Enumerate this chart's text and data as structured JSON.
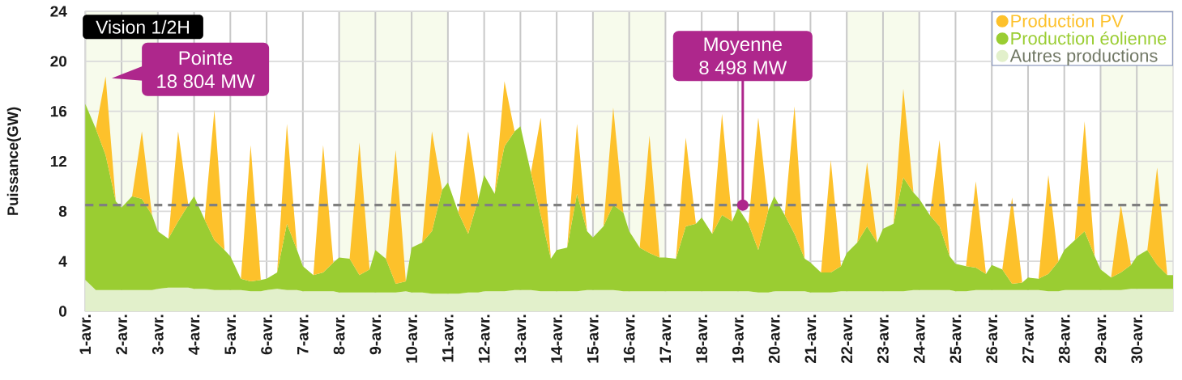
{
  "chart_data": {
    "type": "area",
    "stacked": true,
    "ylabel": "Puissance(GW)",
    "x": [
      1,
      1.29,
      1.56,
      1.84,
      2,
      2.29,
      2.56,
      2.84,
      3,
      3.29,
      3.56,
      3.84,
      4,
      4.29,
      4.56,
      4.84,
      5,
      5.29,
      5.56,
      5.84,
      6,
      6.29,
      6.56,
      6.84,
      7,
      7.29,
      7.56,
      7.84,
      8,
      8.29,
      8.56,
      8.84,
      9,
      9.29,
      9.56,
      9.84,
      10,
      10.29,
      10.56,
      10.84,
      11,
      11.29,
      11.56,
      11.84,
      12,
      12.29,
      12.56,
      12.84,
      13,
      13.29,
      13.56,
      13.84,
      14,
      14.29,
      14.56,
      14.84,
      15,
      15.29,
      15.56,
      15.84,
      16,
      16.29,
      16.56,
      16.84,
      17,
      17.29,
      17.56,
      17.84,
      18,
      18.29,
      18.56,
      18.84,
      19,
      19.29,
      19.56,
      19.84,
      20,
      20.29,
      20.56,
      20.84,
      21,
      21.29,
      21.56,
      21.84,
      22,
      22.29,
      22.56,
      22.84,
      23,
      23.29,
      23.56,
      23.84,
      24,
      24.29,
      24.56,
      24.84,
      25,
      25.29,
      25.56,
      25.84,
      26,
      26.29,
      26.56,
      26.84,
      27,
      27.29,
      27.56,
      27.84,
      28,
      28.29,
      28.56,
      28.84,
      29,
      29.29,
      29.56,
      29.84,
      30,
      30.29,
      30.56,
      30.84,
      31
    ],
    "series": [
      {
        "name": "Autres productions",
        "color": "#E2F0CB",
        "values": [
          2.5,
          1.7,
          1.7,
          1.7,
          1.7,
          1.7,
          1.7,
          1.7,
          1.8,
          1.9,
          1.9,
          1.9,
          1.8,
          1.8,
          1.7,
          1.7,
          1.7,
          1.7,
          1.6,
          1.6,
          1.7,
          1.8,
          1.7,
          1.7,
          1.6,
          1.6,
          1.6,
          1.6,
          1.5,
          1.5,
          1.5,
          1.5,
          1.5,
          1.5,
          1.5,
          1.6,
          1.5,
          1.5,
          1.4,
          1.4,
          1.4,
          1.4,
          1.5,
          1.5,
          1.6,
          1.6,
          1.6,
          1.7,
          1.7,
          1.7,
          1.6,
          1.6,
          1.6,
          1.6,
          1.6,
          1.7,
          1.7,
          1.7,
          1.7,
          1.6,
          1.6,
          1.6,
          1.6,
          1.6,
          1.6,
          1.6,
          1.6,
          1.6,
          1.6,
          1.6,
          1.6,
          1.6,
          1.6,
          1.6,
          1.5,
          1.5,
          1.6,
          1.6,
          1.6,
          1.6,
          1.5,
          1.5,
          1.5,
          1.6,
          1.6,
          1.6,
          1.6,
          1.6,
          1.6,
          1.6,
          1.6,
          1.7,
          1.7,
          1.7,
          1.7,
          1.7,
          1.6,
          1.6,
          1.7,
          1.7,
          1.7,
          1.7,
          1.7,
          1.7,
          1.7,
          1.7,
          1.6,
          1.6,
          1.7,
          1.7,
          1.7,
          1.7,
          1.7,
          1.7,
          1.7,
          1.8,
          1.8,
          1.8,
          1.8,
          1.8,
          1.8
        ]
      },
      {
        "name": "Production éolienne",
        "color": "#9ACD32",
        "values": [
          14.1,
          12.9,
          10.8,
          7.1,
          6.6,
          7.5,
          7.3,
          6.0,
          4.6,
          3.9,
          5.3,
          6.6,
          7.4,
          5.55,
          4.0,
          3.2,
          2.7,
          0.9,
          0.8,
          0.9,
          0.9,
          1.3,
          5.3,
          3.2,
          2.0,
          1.3,
          1.5,
          2.3,
          2.8,
          2.7,
          1.4,
          1.85,
          3.4,
          2.7,
          0.7,
          0.8,
          3.6,
          4.0,
          5.0,
          8.3,
          8.9,
          6.5,
          4.7,
          7.5,
          9.3,
          7.8,
          11.6,
          12.7,
          13.1,
          9.4,
          6.1,
          2.6,
          3.3,
          3.5,
          7.8,
          4.7,
          4.2,
          5.1,
          6.8,
          6.3,
          4.8,
          3.5,
          3.05,
          2.7,
          2.7,
          2.6,
          5.2,
          5.4,
          5.9,
          4.6,
          6.1,
          5.6,
          6.7,
          5.4,
          3.4,
          6.6,
          7.6,
          6.1,
          4.6,
          2.6,
          2.4,
          1.6,
          1.6,
          2.0,
          3.05,
          3.9,
          5.2,
          3.9,
          5.0,
          5.4,
          9.1,
          7.8,
          7.3,
          6.0,
          5.1,
          2.7,
          2.2,
          2.0,
          1.8,
          1.3,
          2.0,
          1.65,
          0.5,
          0.6,
          1.0,
          0.9,
          1.4,
          2.4,
          3.2,
          4.0,
          4.7,
          2.7,
          1.65,
          1.0,
          1.4,
          1.9,
          2.6,
          3.1,
          1.9,
          1.1,
          1.1
        ]
      },
      {
        "name": "Production PV",
        "color": "#FDC12B",
        "values": [
          0,
          0,
          6.3,
          0,
          0,
          0,
          5.4,
          0,
          0,
          0,
          7.2,
          0,
          0,
          0,
          10.4,
          0,
          0,
          0,
          10.9,
          0,
          0,
          0,
          8.0,
          0,
          0,
          0,
          10.2,
          0,
          0,
          0,
          10.6,
          0,
          0,
          0,
          10.7,
          0,
          0,
          0,
          8.0,
          0,
          0,
          0,
          8.2,
          0,
          0,
          0,
          5.2,
          0,
          0,
          0,
          7.8,
          0,
          0,
          0,
          5.6,
          0,
          0,
          0,
          7.8,
          0,
          0,
          0,
          9.4,
          0,
          0,
          0,
          7.1,
          0,
          0,
          0,
          8.1,
          0,
          0,
          0,
          10.6,
          0,
          0,
          0,
          10.2,
          0,
          0,
          0,
          9.0,
          0,
          0,
          0,
          5.1,
          0,
          0,
          0,
          7.1,
          0,
          0,
          0,
          6.9,
          0,
          0,
          0,
          6.9,
          0,
          0,
          0,
          6.9,
          0,
          0,
          0,
          7.9,
          0,
          0,
          0,
          8.8,
          0,
          0,
          0,
          5.4,
          0,
          0,
          0,
          7.8,
          0,
          0
        ]
      }
    ],
    "xlim": [
      1,
      31
    ],
    "ylim": [
      0,
      24
    ],
    "xticks": [
      {
        "value": 1,
        "label": "1-avr."
      },
      {
        "value": 2,
        "label": "2-avr."
      },
      {
        "value": 3,
        "label": "3-avr."
      },
      {
        "value": 4,
        "label": "4-avr."
      },
      {
        "value": 5,
        "label": "5-avr."
      },
      {
        "value": 6,
        "label": "6-avr."
      },
      {
        "value": 7,
        "label": "7-avr."
      },
      {
        "value": 8,
        "label": "8-avr."
      },
      {
        "value": 9,
        "label": "9-avr."
      },
      {
        "value": 10,
        "label": "10-avr."
      },
      {
        "value": 11,
        "label": "11-avr."
      },
      {
        "value": 12,
        "label": "12-avr."
      },
      {
        "value": 13,
        "label": "13-avr."
      },
      {
        "value": 14,
        "label": "14-avr."
      },
      {
        "value": 15,
        "label": "15-avr."
      },
      {
        "value": 16,
        "label": "16-avr."
      },
      {
        "value": 17,
        "label": "17-avr."
      },
      {
        "value": 18,
        "label": "18-avr."
      },
      {
        "value": 19,
        "label": "19-avr."
      },
      {
        "value": 20,
        "label": "20-avr."
      },
      {
        "value": 21,
        "label": "21-avr."
      },
      {
        "value": 22,
        "label": "22-avr."
      },
      {
        "value": 23,
        "label": "23-avr."
      },
      {
        "value": 24,
        "label": "24-avr."
      },
      {
        "value": 25,
        "label": "25-avr."
      },
      {
        "value": 26,
        "label": "26-avr."
      },
      {
        "value": 27,
        "label": "27-avr."
      },
      {
        "value": 28,
        "label": "28-avr."
      },
      {
        "value": 29,
        "label": "29-avr."
      },
      {
        "value": 30,
        "label": "30-avr."
      }
    ],
    "yticks": [
      0,
      4,
      8,
      12,
      16,
      20,
      24
    ],
    "grid": true,
    "legend": "top right",
    "ref_lines": [
      {
        "axis": "y",
        "value": 8.498,
        "label": "Moyenne 8 498 MW",
        "color": "#808080",
        "line_style": "dashed"
      }
    ],
    "bands": [
      {
        "axis": "x",
        "from": 1,
        "to": 3,
        "color": "#F7FBEC"
      },
      {
        "axis": "x",
        "from": 8,
        "to": 11,
        "color": "#F7FBEC"
      },
      {
        "axis": "x",
        "from": 15,
        "to": 17,
        "color": "#F7FBEC"
      },
      {
        "axis": "x",
        "from": 22,
        "to": 24,
        "color": "#F7FBEC"
      },
      {
        "axis": "x",
        "from": 29,
        "to": 31,
        "color": "#F7FBEC"
      }
    ],
    "annotations": [
      "Vision 1/2H",
      {
        "text": "Pointe 18 804 MW",
        "x": 1.56,
        "y": 18.804
      }
    ]
  }
}
